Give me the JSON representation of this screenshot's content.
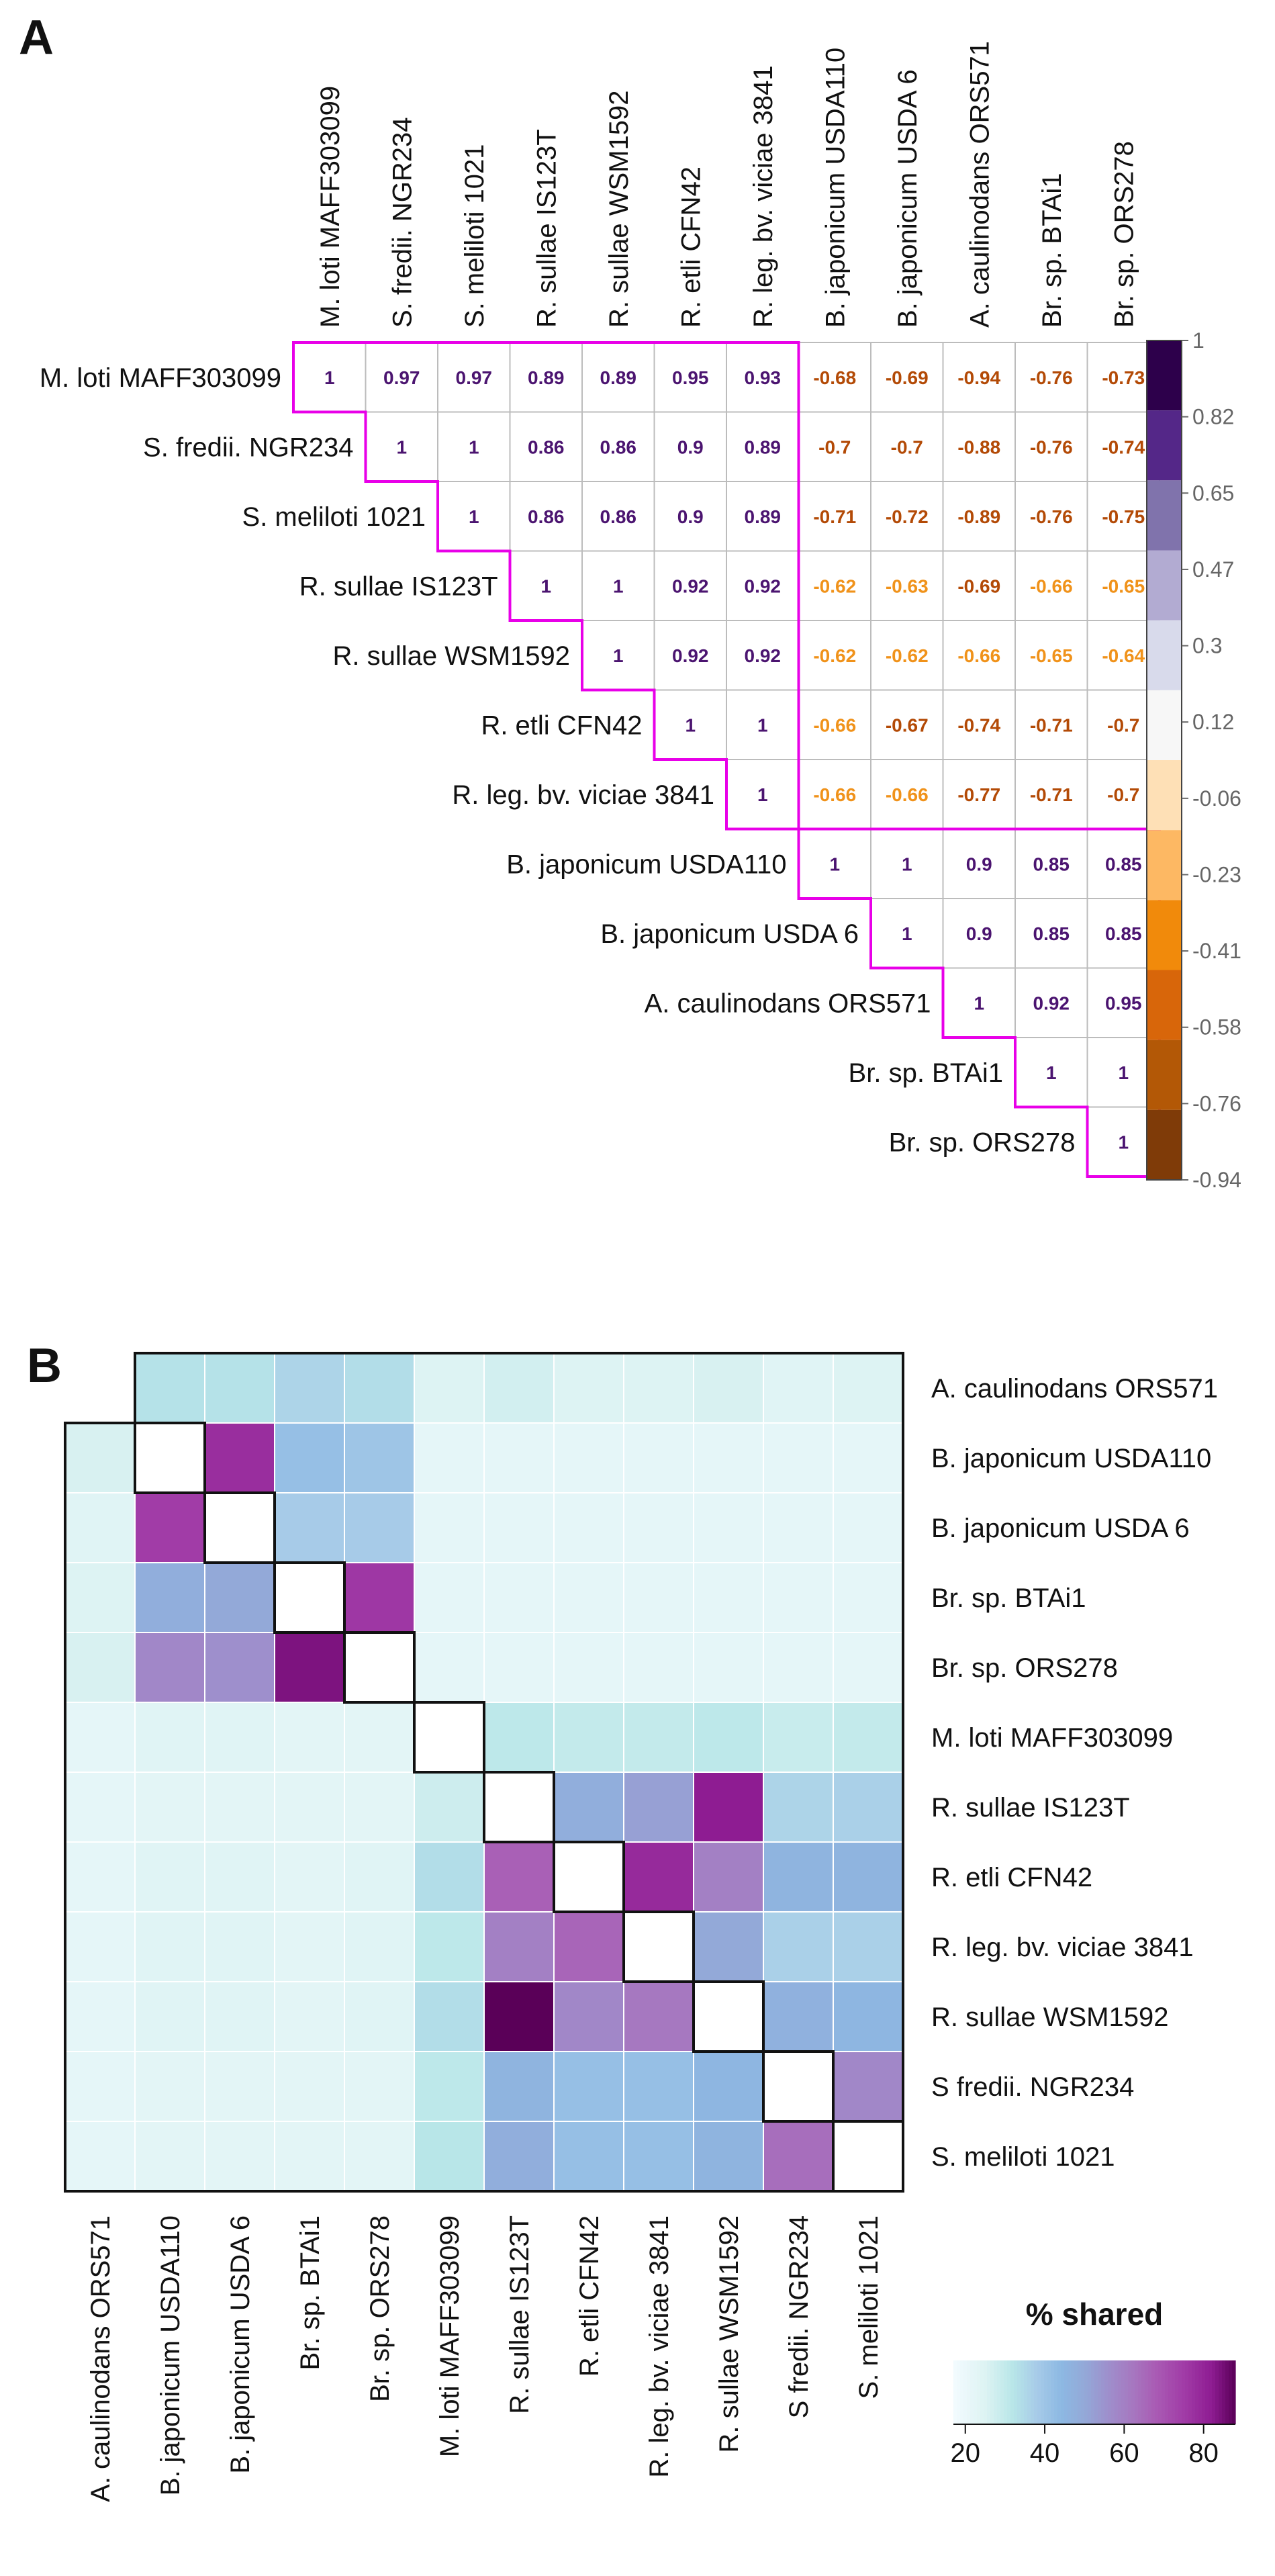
{
  "panel_a_label": "A",
  "panel_b_label": "B",
  "chart_data": [
    {
      "type": "heatmap",
      "panel": "A",
      "title": "",
      "xlabel": "",
      "ylabel": "",
      "rows": [
        "M. loti MAFF303099",
        "S. fredii. NGR234",
        "S. meliloti 1021",
        "R. sullae IS123T",
        "R. sullae WSM1592",
        "R. etli CFN42",
        "R. leg. bv. viciae 3841",
        "B. japonicum USDA110",
        "B. japonicum USDA 6",
        "A. caulinodans ORS571",
        "Br. sp. BTAi1",
        "Br. sp. ORS278"
      ],
      "columns": [
        "M. loti MAFF303099",
        "S. fredii. NGR234",
        "S. meliloti 1021",
        "R. sullae IS123T",
        "R. sullae WSM1592",
        "R. etli CFN42",
        "R. leg. bv. viciae 3841",
        "B. japonicum USDA110",
        "B. japonicum USDA 6",
        "A. caulinodans ORS571",
        "Br. sp. BTAi1",
        "Br. sp. ORS278"
      ],
      "values": [
        [
          "1",
          "0.97",
          "0.97",
          "0.89",
          "0.89",
          "0.95",
          "0.93",
          "-0.68",
          "-0.69",
          "-0.94",
          "-0.76",
          "-0.73"
        ],
        [
          null,
          "1",
          "1",
          "0.86",
          "0.86",
          "0.9",
          "0.89",
          "-0.7",
          "-0.7",
          "-0.88",
          "-0.76",
          "-0.74"
        ],
        [
          null,
          null,
          "1",
          "0.86",
          "0.86",
          "0.9",
          "0.89",
          "-0.71",
          "-0.72",
          "-0.89",
          "-0.76",
          "-0.75"
        ],
        [
          null,
          null,
          null,
          "1",
          "1",
          "0.92",
          "0.92",
          "-0.62",
          "-0.63",
          "-0.69",
          "-0.66",
          "-0.65"
        ],
        [
          null,
          null,
          null,
          null,
          "1",
          "0.92",
          "0.92",
          "-0.62",
          "-0.62",
          "-0.66",
          "-0.65",
          "-0.64"
        ],
        [
          null,
          null,
          null,
          null,
          null,
          "1",
          "1",
          "-0.66",
          "-0.67",
          "-0.74",
          "-0.71",
          "-0.7"
        ],
        [
          null,
          null,
          null,
          null,
          null,
          null,
          "1",
          "-0.66",
          "-0.66",
          "-0.77",
          "-0.71",
          "-0.7"
        ],
        [
          null,
          null,
          null,
          null,
          null,
          null,
          null,
          "1",
          "1",
          "0.9",
          "0.85",
          "0.85"
        ],
        [
          null,
          null,
          null,
          null,
          null,
          null,
          null,
          null,
          "1",
          "0.9",
          "0.85",
          "0.85"
        ],
        [
          null,
          null,
          null,
          null,
          null,
          null,
          null,
          null,
          null,
          "1",
          "0.92",
          "0.95"
        ],
        [
          null,
          null,
          null,
          null,
          null,
          null,
          null,
          null,
          null,
          null,
          "1",
          "1"
        ],
        [
          null,
          null,
          null,
          null,
          null,
          null,
          null,
          null,
          null,
          null,
          null,
          "1"
        ]
      ],
      "colorbar": {
        "ticks": [
          "1",
          "0.82",
          "0.65",
          "0.47",
          "0.3",
          "0.12",
          "-0.06",
          "-0.23",
          "-0.41",
          "-0.58",
          "-0.76",
          "-0.94"
        ],
        "colors": [
          "#2d004b",
          "#542788",
          "#8073ac",
          "#b2abd2",
          "#d8daeb",
          "#f7f7f7",
          "#fee0b6",
          "#fdb863",
          "#f18a0b",
          "#d8660a",
          "#b35806",
          "#7f3b08"
        ]
      },
      "cluster_outline_color": "#e800e8"
    },
    {
      "type": "heatmap",
      "panel": "B",
      "title": "",
      "xlabel": "",
      "ylabel": "",
      "labels": [
        "A. caulinodans ORS571",
        "B. japonicum USDA110",
        "B. japonicum USDA 6",
        "Br. sp. BTAi1",
        "Br. sp. ORS278",
        "M. loti MAFF303099",
        "R. sullae IS123T",
        "R. etli CFN42",
        "R. leg. bv. viciae 3841",
        "R. sullae WSM1592",
        "S fredii. NGR234",
        "S. meliloti 1021"
      ],
      "x_labels": [
        "A. caulinodans ORS571",
        "B. japonicum USDA110",
        "B. japonicum USDA 6",
        "Br. sp. BTAi1",
        "Br. sp. ORS278",
        "M. loti MAFF303099",
        "R. sullae IS123T",
        "R. etli CFN42",
        "R. leg. bv. viciae 3841",
        "R. sullae WSM1592",
        "S fredii. NGR234",
        "S. meliloti 1021"
      ],
      "values": [
        [
          null,
          33,
          33,
          36,
          34,
          25,
          27,
          25,
          25,
          26,
          24,
          25
        ],
        [
          26,
          null,
          78,
          42,
          40,
          22,
          22,
          22,
          22,
          22,
          22,
          22
        ],
        [
          24,
          75,
          null,
          38,
          38,
          22,
          22,
          22,
          22,
          22,
          22,
          22
        ],
        [
          25,
          48,
          50,
          null,
          76,
          22,
          22,
          22,
          22,
          22,
          22,
          22
        ],
        [
          26,
          58,
          56,
          84,
          null,
          22,
          22,
          22,
          22,
          22,
          22,
          22
        ],
        [
          22,
          24,
          24,
          23,
          23,
          null,
          31,
          30,
          30,
          31,
          29,
          30
        ],
        [
          22,
          23,
          23,
          23,
          23,
          28,
          null,
          48,
          52,
          82,
          36,
          37
        ],
        [
          22,
          24,
          24,
          23,
          24,
          34,
          67,
          null,
          79,
          60,
          46,
          46
        ],
        [
          22,
          24,
          24,
          23,
          24,
          31,
          60,
          66,
          null,
          50,
          37,
          37
        ],
        [
          22,
          24,
          24,
          23,
          24,
          34,
          90,
          58,
          62,
          null,
          47,
          45
        ],
        [
          22,
          23,
          23,
          23,
          23,
          31,
          46,
          42,
          42,
          45,
          null,
          58
        ],
        [
          22,
          23,
          23,
          23,
          23,
          32,
          48,
          42,
          42,
          46,
          64,
          null
        ]
      ],
      "legend": {
        "title": "% shared",
        "ticks": [
          20,
          40,
          60,
          80
        ],
        "range": [
          17,
          88
        ]
      }
    }
  ]
}
